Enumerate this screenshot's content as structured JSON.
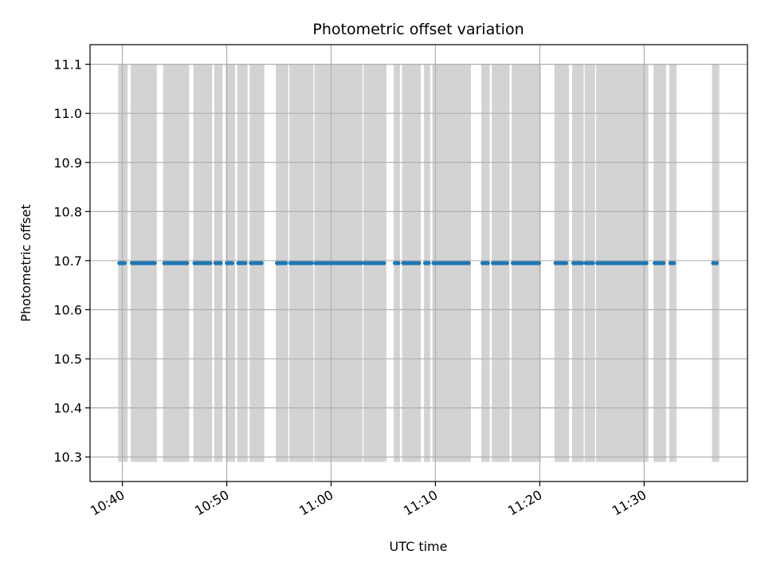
{
  "chart_data": {
    "type": "scatter",
    "title": "Photometric offset variation",
    "xlabel": "UTC time",
    "ylabel": "Photometric offset",
    "x_ticks": [
      "10:40",
      "10:50",
      "11:00",
      "11:10",
      "11:20",
      "11:30"
    ],
    "y_ticks": [
      "10.3",
      "10.4",
      "10.5",
      "10.6",
      "10.7",
      "10.8",
      "10.9",
      "11.0",
      "11.1"
    ],
    "xlim": [
      "10:36.9",
      "11:39.9"
    ],
    "ylim": [
      10.25,
      11.14
    ],
    "grid": true,
    "colors": {
      "points": "#1f77b4",
      "bands": "#d3d3d3",
      "grid": "#b0b0b0",
      "axes": "#000000"
    },
    "band_range": [
      10.29,
      11.1
    ],
    "bands": [
      [
        "10:39.6",
        "10:40.5"
      ],
      [
        "10:40.8",
        "10:43.3"
      ],
      [
        "10:43.9",
        "10:46.4"
      ],
      [
        "10:46.8",
        "10:48.6"
      ],
      [
        "10:48.8",
        "10:49.6"
      ],
      [
        "10:49.9",
        "10:50.8"
      ],
      [
        "10:51.0",
        "10:52.0"
      ],
      [
        "10:52.2",
        "10:53.6"
      ],
      [
        "10:54.7",
        "10:55.9"
      ],
      [
        "10:56.0",
        "10:58.3"
      ],
      [
        "10:58.4",
        "11:03.0"
      ],
      [
        "11:03.1",
        "11:05.3"
      ],
      [
        "11:06.0",
        "11:06.6"
      ],
      [
        "11:06.8",
        "11:08.6"
      ],
      [
        "11:08.9",
        "11:09.5"
      ],
      [
        "11:09.7",
        "11:13.4"
      ],
      [
        "11:14.4",
        "11:15.2"
      ],
      [
        "11:15.4",
        "11:17.1"
      ],
      [
        "11:17.3",
        "11:20.1"
      ],
      [
        "11:21.4",
        "11:22.8"
      ],
      [
        "11:23.1",
        "11:24.2"
      ],
      [
        "11:24.3",
        "11:25.3"
      ],
      [
        "11:25.4",
        "11:30.4"
      ],
      [
        "11:30.9",
        "11:32.1"
      ],
      [
        "11:32.4",
        "11:33.1"
      ],
      [
        "11:36.5",
        "11:37.2"
      ]
    ],
    "series": [
      {
        "y_value": 10.695,
        "x_intervals": [
          [
            "10:39.6",
            "10:40.5"
          ],
          [
            "10:40.8",
            "10:43.3"
          ],
          [
            "10:43.9",
            "10:46.4"
          ],
          [
            "10:46.8",
            "10:48.6"
          ],
          [
            "10:48.8",
            "10:49.6"
          ],
          [
            "10:49.9",
            "10:50.8"
          ],
          [
            "10:51.0",
            "10:52.0"
          ],
          [
            "10:52.2",
            "10:53.6"
          ],
          [
            "10:54.7",
            "10:55.9"
          ],
          [
            "10:56.0",
            "10:58.3"
          ],
          [
            "10:58.4",
            "11:03.0"
          ],
          [
            "11:03.1",
            "11:05.3"
          ],
          [
            "11:06.0",
            "11:06.6"
          ],
          [
            "11:06.8",
            "11:08.6"
          ],
          [
            "11:08.9",
            "11:09.5"
          ],
          [
            "11:09.7",
            "11:13.4"
          ],
          [
            "11:14.4",
            "11:15.2"
          ],
          [
            "11:15.4",
            "11:17.1"
          ],
          [
            "11:17.3",
            "11:20.1"
          ],
          [
            "11:21.4",
            "11:22.8"
          ],
          [
            "11:23.1",
            "11:24.2"
          ],
          [
            "11:24.3",
            "11:25.3"
          ],
          [
            "11:25.4",
            "11:30.4"
          ],
          [
            "11:30.9",
            "11:32.1"
          ],
          [
            "11:32.4",
            "11:33.1"
          ],
          [
            "11:36.5",
            "11:37.2"
          ]
        ]
      }
    ]
  }
}
